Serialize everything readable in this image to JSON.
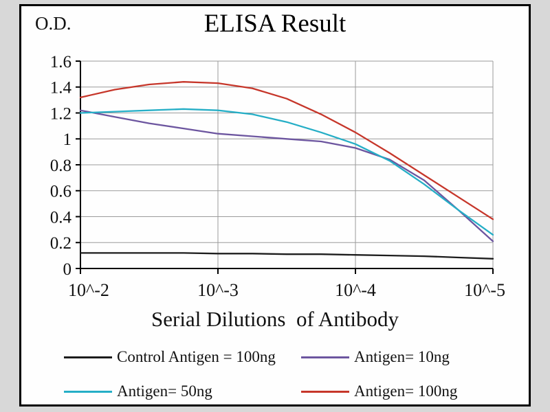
{
  "chart_data": {
    "type": "line",
    "title": "ELISA Result",
    "ylabel": "O.D.",
    "xlabel": "Serial Dilutions  of Antibody",
    "x_scale": "log10 of antibody dilution",
    "x": [
      -2.0,
      -2.25,
      -2.5,
      -2.75,
      -3.0,
      -3.25,
      -3.5,
      -3.75,
      -4.0,
      -4.25,
      -4.5,
      -4.75,
      -5.0
    ],
    "x_ticks": [
      -2,
      -3,
      -4,
      -5
    ],
    "x_tick_labels": [
      "10^-2",
      "10^-3",
      "10^-4",
      "10^-5"
    ],
    "y_ticks": [
      0,
      0.2,
      0.4,
      0.6,
      0.8,
      1.0,
      1.2,
      1.4,
      1.6
    ],
    "y_tick_labels": [
      "0",
      "0.2",
      "0.4",
      "0.6",
      "0.8",
      "1",
      "1.2",
      "1.4",
      "1.6"
    ],
    "ylim": [
      0,
      1.6
    ],
    "grid": true,
    "legend_position": "bottom",
    "legend_columns": 2,
    "grid_color": "#9a9a9a",
    "axis_color": "#000000",
    "series": [
      {
        "name": "Control Antigen = 100ng",
        "color": "#1c1c1c",
        "values": [
          0.12,
          0.12,
          0.12,
          0.12,
          0.115,
          0.115,
          0.11,
          0.11,
          0.105,
          0.1,
          0.095,
          0.085,
          0.075
        ]
      },
      {
        "name": "Antigen= 10ng",
        "color": "#6c559f",
        "values": [
          1.22,
          1.17,
          1.12,
          1.08,
          1.04,
          1.02,
          1.0,
          0.98,
          0.93,
          0.84,
          0.68,
          0.45,
          0.21
        ]
      },
      {
        "name": "Antigen= 50ng",
        "color": "#25aec6",
        "values": [
          1.2,
          1.21,
          1.22,
          1.23,
          1.22,
          1.19,
          1.13,
          1.05,
          0.96,
          0.83,
          0.65,
          0.45,
          0.26
        ]
      },
      {
        "name": "Antigen= 100ng",
        "color": "#c6362a",
        "values": [
          1.32,
          1.38,
          1.42,
          1.44,
          1.43,
          1.39,
          1.31,
          1.19,
          1.05,
          0.89,
          0.72,
          0.55,
          0.38
        ]
      }
    ]
  }
}
